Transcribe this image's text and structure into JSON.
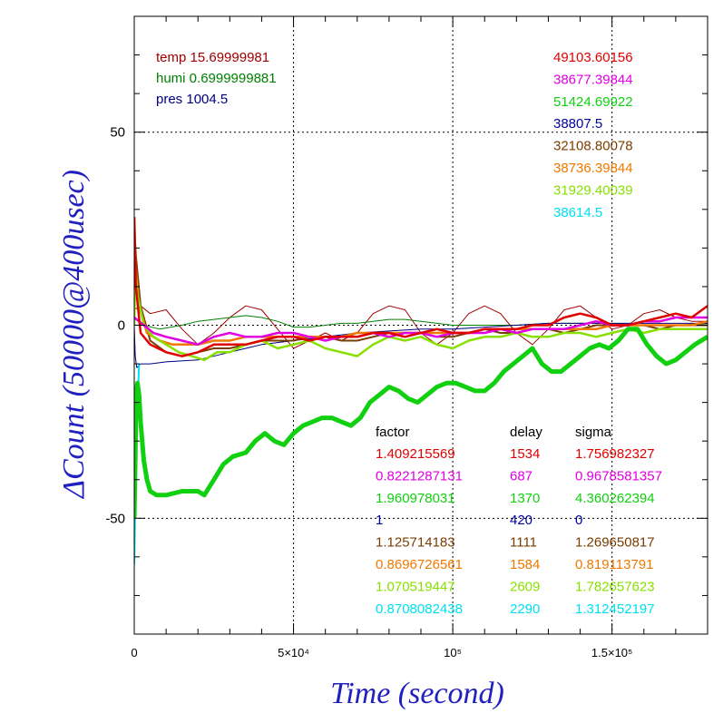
{
  "chart_data": {
    "type": "line",
    "xlabel": "Time (second)",
    "ylabel": "ΔCount (50000@400usec)",
    "xlim": [
      0,
      180000
    ],
    "ylim": [
      -80,
      80
    ],
    "grid": true,
    "x_ticks": [
      {
        "value": 0,
        "label": "0"
      },
      {
        "value": 50000,
        "label": "5×10⁴"
      },
      {
        "value": 100000,
        "label": "10⁵"
      },
      {
        "value": 150000,
        "label": "1.5×10⁵"
      }
    ],
    "y_ticks": [
      {
        "value": 50,
        "label": "50"
      },
      {
        "value": 0,
        "label": "0"
      },
      {
        "value": -50,
        "label": "-50"
      }
    ],
    "env": [
      {
        "label": "temp",
        "value": "15.69999981",
        "color": "#a00000"
      },
      {
        "label": "humi",
        "value": "0.6999999881",
        "color": "#008000"
      },
      {
        "label": "pres",
        "value": "1004.5",
        "color": "#00007f"
      }
    ],
    "baselines": [
      {
        "value": "49103.60156",
        "color": "#e00000"
      },
      {
        "value": "38677.39844",
        "color": "#e000e0"
      },
      {
        "value": "51424.69922",
        "color": "#10d010"
      },
      {
        "value": "38807.5",
        "color": "#0000a0"
      },
      {
        "value": "32108.80078",
        "color": "#7a3c00"
      },
      {
        "value": "38736.39844",
        "color": "#f07800"
      },
      {
        "value": "31929.40039",
        "color": "#88e000"
      },
      {
        "value": "38614.5",
        "color": "#00e0f0"
      }
    ],
    "param_headers": [
      "factor",
      "delay",
      "sigma"
    ],
    "params": [
      {
        "factor": "1.409215569",
        "delay": "1534",
        "sigma": "1.756982327",
        "color": "#e00000"
      },
      {
        "factor": "0.8221287131",
        "delay": "687",
        "sigma": "0.9678581357",
        "color": "#e000e0"
      },
      {
        "factor": "1.960978031",
        "delay": "1370",
        "sigma": "4.360262394",
        "color": "#10d010"
      },
      {
        "factor": "1",
        "delay": "420",
        "sigma": "0",
        "color": "#0000a0"
      },
      {
        "factor": "1.125714183",
        "delay": "1111",
        "sigma": "1.269650817",
        "color": "#7a3c00"
      },
      {
        "factor": "0.8696726561",
        "delay": "1584",
        "sigma": "0.819113791",
        "color": "#f07800"
      },
      {
        "factor": "1.070519447",
        "delay": "2609",
        "sigma": "1.782657623",
        "color": "#88e000"
      },
      {
        "factor": "0.8708082438",
        "delay": "2290",
        "sigma": "1.312452197",
        "color": "#00e0f0"
      }
    ],
    "series": [
      {
        "color": "#a00000",
        "width": 1,
        "x": [
          0,
          2000,
          5000,
          10000,
          15000,
          20000,
          25000,
          30000,
          35000,
          40000,
          45000,
          50000,
          55000,
          60000,
          65000,
          70000,
          75000,
          80000,
          85000,
          90000,
          95000,
          100000,
          105000,
          110000,
          115000,
          120000,
          125000,
          130000,
          135000,
          140000,
          145000,
          150000,
          155000,
          160000,
          165000,
          170000,
          175000,
          180000
        ],
        "y": [
          4,
          5,
          3,
          4,
          -1,
          -5,
          -2,
          2,
          5,
          4,
          -1,
          -6,
          -4,
          -2,
          -4,
          -2,
          3,
          5,
          4,
          -2,
          -5,
          -2,
          3,
          5,
          3,
          -2,
          -5,
          -1,
          4,
          5,
          2,
          -1,
          0,
          3,
          4,
          2,
          1,
          1
        ]
      },
      {
        "color": "#008000",
        "width": 1,
        "x": [
          0,
          3000,
          8000,
          15000,
          20000,
          25000,
          30000,
          35000,
          40000,
          45000,
          50000,
          55000,
          60000,
          65000,
          70000,
          75000,
          80000,
          85000,
          90000,
          95000,
          100000,
          110000,
          120000,
          130000,
          140000,
          150000,
          160000,
          170000,
          180000
        ],
        "y": [
          2,
          0,
          -1,
          0,
          1,
          1.5,
          2,
          2.5,
          2,
          1,
          -0.5,
          -0.5,
          0,
          0.5,
          0.5,
          1,
          1.5,
          1.5,
          1,
          0.5,
          0,
          0,
          0,
          0.5,
          0.5,
          0.5,
          0,
          0,
          0.5
        ]
      },
      {
        "color": "#00007f",
        "width": 1,
        "x": [
          0,
          300,
          800,
          2000,
          5000,
          10000,
          20000,
          30000,
          40000,
          50000,
          60000,
          70000,
          80000,
          90000,
          100000,
          110000,
          120000,
          130000,
          140000,
          150000,
          160000,
          170000,
          180000
        ],
        "y": [
          0,
          -8,
          -11,
          -10,
          -10,
          -9.5,
          -9,
          -7,
          -5,
          -4,
          -3,
          -2,
          -1.5,
          -1,
          -1,
          -0.5,
          0,
          0.5,
          0.5,
          0.5,
          0.5,
          0.5,
          0.5
        ]
      },
      {
        "color": "#7a3c00",
        "width": 2,
        "x": [
          0,
          500,
          2000,
          5000,
          10000,
          15000,
          20000,
          25000,
          30000,
          35000,
          40000,
          45000,
          50000,
          55000,
          60000,
          65000,
          70000,
          75000,
          80000,
          85000,
          90000,
          95000,
          100000,
          105000,
          110000,
          115000,
          120000,
          125000,
          130000,
          135000,
          140000,
          145000,
          150000,
          155000,
          160000,
          165000,
          170000,
          175000,
          180000
        ],
        "y": [
          26,
          18,
          5,
          -4,
          -7,
          -8,
          -7,
          -6,
          -6,
          -5,
          -4,
          -4,
          -4,
          -3,
          -3,
          -4,
          -4,
          -3,
          -2,
          -3,
          -2,
          -3,
          -3,
          -2,
          -1,
          -2,
          -2,
          -1,
          -1,
          -2,
          -1,
          0,
          0,
          0,
          0,
          -1,
          0,
          0,
          0
        ]
      },
      {
        "color": "#f07800",
        "width": 2.5,
        "x": [
          0,
          400,
          1500,
          4000,
          8000,
          12000,
          16000,
          20000,
          25000,
          30000,
          35000,
          40000,
          45000,
          50000,
          55000,
          60000,
          65000,
          70000,
          75000,
          80000,
          85000,
          90000,
          95000,
          100000,
          105000,
          110000,
          115000,
          120000,
          125000,
          130000,
          135000,
          140000,
          145000,
          150000,
          155000,
          160000,
          165000,
          170000,
          175000,
          180000
        ],
        "y": [
          28,
          15,
          5,
          -2,
          -4,
          -5,
          -5,
          -5,
          -4,
          -4,
          -3,
          -3,
          -3,
          -3,
          -3,
          -3,
          -3,
          -2,
          -2,
          -2,
          -2,
          -2,
          -2,
          -2,
          -2,
          -1,
          -1,
          -1,
          -1,
          -1,
          -1,
          -1,
          -1,
          0,
          0,
          0,
          0,
          0,
          0,
          1
        ]
      },
      {
        "color": "#88e000",
        "width": 2.5,
        "x": [
          0,
          300,
          1000,
          3000,
          6000,
          10000,
          14000,
          18000,
          22000,
          26000,
          30000,
          35000,
          40000,
          45000,
          50000,
          55000,
          60000,
          65000,
          70000,
          75000,
          80000,
          85000,
          90000,
          95000,
          100000,
          105000,
          110000,
          115000,
          120000,
          125000,
          130000,
          135000,
          140000,
          145000,
          150000,
          155000,
          160000,
          165000,
          170000,
          175000,
          180000
        ],
        "y": [
          0,
          14,
          8,
          0,
          -3,
          -5,
          -7,
          -8,
          -9,
          -7,
          -7,
          -5,
          -4,
          -6,
          -5,
          -4,
          -6,
          -7,
          -8,
          -5,
          -3,
          -4,
          -3,
          -5,
          -6,
          -4,
          -3,
          -3,
          -2,
          -3,
          -3,
          -2,
          -2,
          -3,
          -2,
          -1,
          -2,
          -1,
          -1,
          -1,
          -1
        ]
      },
      {
        "color": "#e000e0",
        "width": 2.5,
        "x": [
          0,
          3000,
          6000,
          10000,
          15000,
          20000,
          25000,
          30000,
          35000,
          40000,
          45000,
          50000,
          55000,
          60000,
          65000,
          70000,
          75000,
          80000,
          85000,
          90000,
          95000,
          100000,
          105000,
          110000,
          115000,
          120000,
          125000,
          130000,
          135000,
          140000,
          145000,
          150000,
          155000,
          160000,
          165000,
          170000,
          175000,
          180000
        ],
        "y": [
          2,
          0,
          -2,
          -3,
          -4,
          -5,
          -3,
          -2,
          -3,
          -3,
          -2,
          -2,
          -3,
          -4,
          -3,
          -3,
          -2,
          -3,
          -2,
          -2,
          -3,
          -2,
          -2,
          -2,
          -1,
          -2,
          -1,
          -1,
          -1,
          0,
          1,
          0,
          0,
          1,
          1,
          2,
          2,
          2
        ]
      },
      {
        "color": "#e00000",
        "width": 2.5,
        "x": [
          0,
          500,
          2000,
          5000,
          10000,
          15000,
          20000,
          25000,
          30000,
          35000,
          40000,
          45000,
          50000,
          55000,
          60000,
          65000,
          70000,
          75000,
          80000,
          85000,
          90000,
          95000,
          100000,
          105000,
          110000,
          115000,
          120000,
          125000,
          130000,
          135000,
          140000,
          145000,
          150000,
          155000,
          160000,
          165000,
          170000,
          175000,
          180000
        ],
        "y": [
          28,
          10,
          -2,
          -5,
          -7,
          -8,
          -7,
          -5,
          -5,
          -5,
          -4,
          -3,
          -3,
          -4,
          -3,
          -3,
          -3,
          -2,
          -2,
          -3,
          -2,
          -1,
          -2,
          -2,
          -1,
          -1,
          -1,
          0,
          0,
          2,
          3,
          2,
          0,
          0,
          1,
          2,
          3,
          2,
          5
        ]
      },
      {
        "color": "#00e0f0",
        "width": 2,
        "x": [
          0,
          200,
          600,
          1500
        ],
        "y": [
          -62,
          -52,
          -30,
          -10
        ]
      },
      {
        "color": "#10d010",
        "width": 5,
        "x": [
          0,
          300,
          600,
          1000,
          1500,
          2000,
          3000,
          4000,
          5000,
          7000,
          10000,
          15000,
          20000,
          22000,
          25000,
          28000,
          31000,
          35000,
          38000,
          41000,
          44000,
          47000,
          50000,
          53000,
          56000,
          59000,
          62000,
          65000,
          68000,
          71000,
          74000,
          77000,
          80000,
          83000,
          86000,
          89000,
          92000,
          95000,
          98000,
          101000,
          104000,
          107000,
          110000,
          113000,
          116000,
          119000,
          122000,
          125000,
          128000,
          131000,
          134000,
          137000,
          140000,
          143000,
          146000,
          149000,
          152000,
          155000,
          158000,
          161000,
          164000,
          167000,
          170000,
          173000,
          176000,
          180000
        ],
        "y": [
          -50,
          -35,
          -18,
          -15,
          -18,
          -25,
          -35,
          -40,
          -43,
          -44,
          -44,
          -43,
          -43,
          -44,
          -40,
          -36,
          -34,
          -33,
          -30,
          -28,
          -30,
          -31,
          -28,
          -26,
          -25,
          -24,
          -24,
          -25,
          -26,
          -24,
          -20,
          -18,
          -16,
          -17,
          -19,
          -20,
          -18,
          -16,
          -15,
          -15,
          -16,
          -17,
          -17,
          -15,
          -12,
          -10,
          -8,
          -6,
          -10,
          -12,
          -12,
          -10,
          -8,
          -6,
          -5,
          -6,
          -4,
          -1,
          -1,
          -5,
          -8,
          -10,
          -9,
          -7,
          -5,
          -3
        ]
      }
    ]
  }
}
